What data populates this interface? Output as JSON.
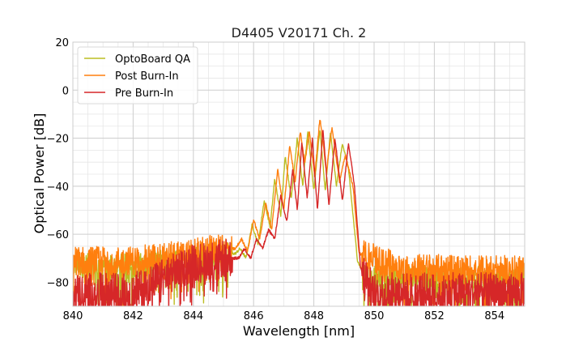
{
  "chart_data": {
    "type": "line",
    "title": "D4405 V20171 Ch. 2",
    "xlabel": "Wavelength [nm]",
    "ylabel": "Optical Power [dB]",
    "xlim": [
      840,
      855
    ],
    "ylim": [
      -90,
      20
    ],
    "xticks": [
      840,
      842,
      844,
      846,
      848,
      850,
      852,
      854
    ],
    "yticks": [
      20,
      0,
      -20,
      -40,
      -60,
      -80
    ],
    "xticks_minor_step": 0.5,
    "yticks_minor_step": 5,
    "grid": true,
    "legend_position": "top-left",
    "series": [
      {
        "name": "OptoBoard QA",
        "color": "#bcbd22",
        "noise_floor": -76,
        "noise_amp": 5,
        "peaks": [
          {
            "x": 845.55,
            "y": -66
          },
          {
            "x": 845.95,
            "y": -56
          },
          {
            "x": 846.35,
            "y": -46
          },
          {
            "x": 846.7,
            "y": -37
          },
          {
            "x": 847.05,
            "y": -27.5
          },
          {
            "x": 847.45,
            "y": -20
          },
          {
            "x": 847.8,
            "y": -17
          },
          {
            "x": 848.2,
            "y": -16
          },
          {
            "x": 848.55,
            "y": -17.5
          },
          {
            "x": 848.95,
            "y": -22
          }
        ],
        "points": [
          [
            840.0,
            -73
          ],
          [
            842.0,
            -73
          ],
          [
            844.0,
            -70
          ],
          [
            845.0,
            -68.5
          ],
          [
            845.4,
            -68
          ],
          [
            845.55,
            -66
          ],
          [
            845.75,
            -70
          ],
          [
            845.95,
            -56
          ],
          [
            846.15,
            -64
          ],
          [
            846.35,
            -46
          ],
          [
            846.55,
            -57
          ],
          [
            846.7,
            -37
          ],
          [
            846.9,
            -52
          ],
          [
            847.05,
            -27.5
          ],
          [
            847.25,
            -45
          ],
          [
            847.45,
            -20
          ],
          [
            847.63,
            -40
          ],
          [
            847.8,
            -17
          ],
          [
            848.0,
            -42
          ],
          [
            848.2,
            -16
          ],
          [
            848.38,
            -42
          ],
          [
            848.55,
            -17.5
          ],
          [
            848.75,
            -40
          ],
          [
            848.95,
            -22
          ],
          [
            849.15,
            -33
          ],
          [
            849.3,
            -52
          ],
          [
            849.45,
            -71
          ],
          [
            849.7,
            -78
          ],
          [
            851.0,
            -78
          ],
          [
            855.0,
            -78
          ]
        ]
      },
      {
        "name": "Post Burn-In",
        "color": "#ff7f0e",
        "noise_floor": -74,
        "noise_amp": 6,
        "peaks": [
          {
            "x": 845.6,
            "y": -62
          },
          {
            "x": 846.0,
            "y": -54
          },
          {
            "x": 846.4,
            "y": -47
          },
          {
            "x": 846.8,
            "y": -33
          },
          {
            "x": 847.2,
            "y": -23
          },
          {
            "x": 847.55,
            "y": -17
          },
          {
            "x": 847.85,
            "y": -17.5
          },
          {
            "x": 848.2,
            "y": -11.5
          },
          {
            "x": 848.6,
            "y": -15.5
          },
          {
            "x": 849.05,
            "y": -27
          }
        ],
        "points": [
          [
            840.0,
            -71
          ],
          [
            842.0,
            -71
          ],
          [
            844.0,
            -68
          ],
          [
            844.6,
            -66
          ],
          [
            845.0,
            -66.5
          ],
          [
            845.4,
            -66
          ],
          [
            845.6,
            -62
          ],
          [
            845.8,
            -67
          ],
          [
            846.0,
            -54
          ],
          [
            846.2,
            -62
          ],
          [
            846.4,
            -47
          ],
          [
            846.6,
            -58
          ],
          [
            846.8,
            -33
          ],
          [
            847.0,
            -50
          ],
          [
            847.2,
            -23
          ],
          [
            847.38,
            -38
          ],
          [
            847.55,
            -17
          ],
          [
            847.7,
            -30
          ],
          [
            847.85,
            -17.5
          ],
          [
            848.03,
            -36
          ],
          [
            848.2,
            -11.5
          ],
          [
            848.42,
            -34
          ],
          [
            848.6,
            -15.5
          ],
          [
            848.85,
            -38
          ],
          [
            849.05,
            -27
          ],
          [
            849.3,
            -40
          ],
          [
            849.5,
            -68
          ],
          [
            850.0,
            -70
          ],
          [
            851.0,
            -74
          ],
          [
            855.0,
            -75
          ]
        ]
      },
      {
        "name": "Pre Burn-In",
        "color": "#d62728",
        "noise_floor": -80,
        "noise_amp": 8,
        "peaks": [
          {
            "x": 845.7,
            "y": -66
          },
          {
            "x": 846.1,
            "y": -62
          },
          {
            "x": 846.5,
            "y": -58
          },
          {
            "x": 846.9,
            "y": -44
          },
          {
            "x": 847.3,
            "y": -33
          },
          {
            "x": 847.6,
            "y": -22
          },
          {
            "x": 847.95,
            "y": -20.5
          },
          {
            "x": 848.3,
            "y": -16
          },
          {
            "x": 848.7,
            "y": -20
          },
          {
            "x": 849.15,
            "y": -22
          }
        ],
        "points": [
          [
            840.0,
            -84
          ],
          [
            842.0,
            -84
          ],
          [
            844.0,
            -72
          ],
          [
            845.0,
            -70
          ],
          [
            845.5,
            -70
          ],
          [
            845.7,
            -66
          ],
          [
            845.9,
            -70
          ],
          [
            846.1,
            -62
          ],
          [
            846.3,
            -66
          ],
          [
            846.5,
            -58
          ],
          [
            846.7,
            -62
          ],
          [
            846.9,
            -44
          ],
          [
            847.1,
            -55
          ],
          [
            847.3,
            -33
          ],
          [
            847.45,
            -50
          ],
          [
            847.6,
            -22
          ],
          [
            847.78,
            -45
          ],
          [
            847.95,
            -20.5
          ],
          [
            848.12,
            -50
          ],
          [
            848.3,
            -16
          ],
          [
            848.5,
            -48
          ],
          [
            848.7,
            -20
          ],
          [
            848.95,
            -46
          ],
          [
            849.15,
            -22
          ],
          [
            849.35,
            -40
          ],
          [
            849.55,
            -74
          ],
          [
            850.0,
            -84
          ],
          [
            855.0,
            -84
          ]
        ]
      }
    ]
  }
}
